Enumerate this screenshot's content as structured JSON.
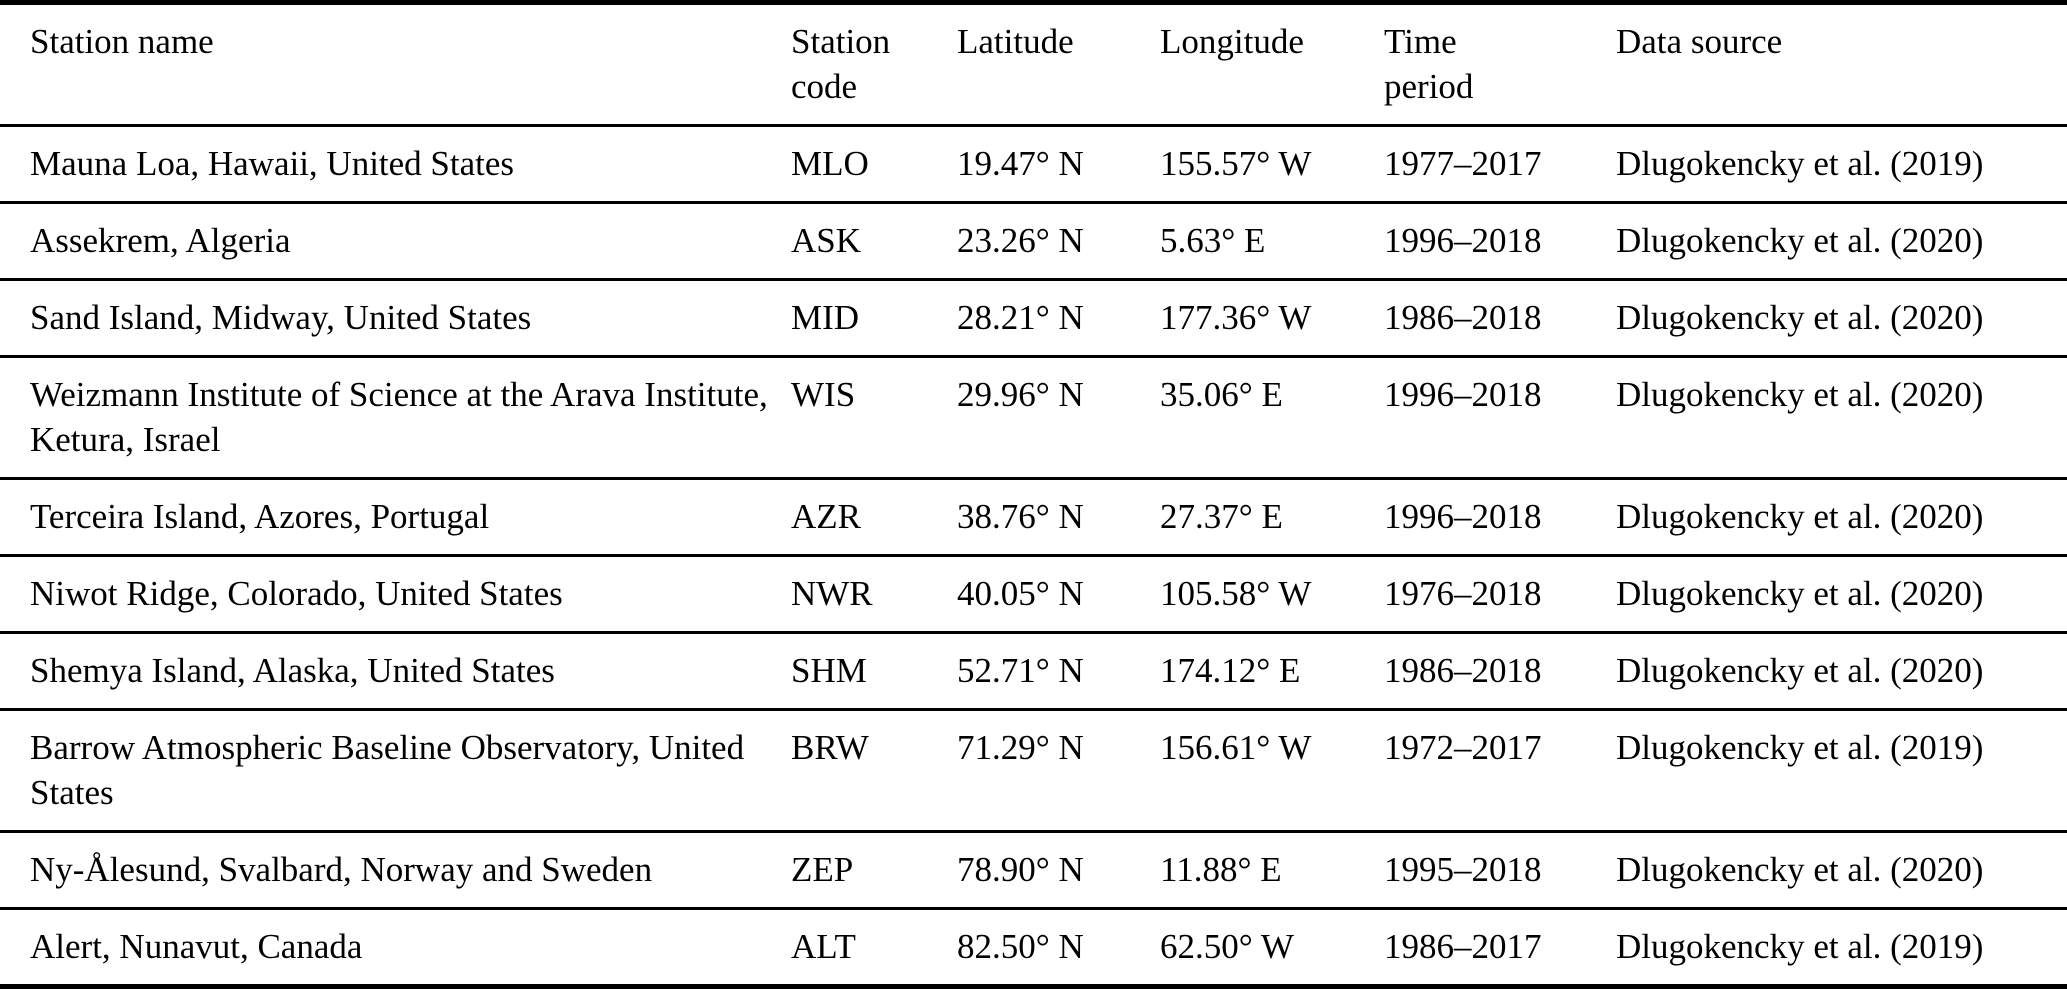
{
  "colors": {
    "background": "#ffffff",
    "text": "#000000",
    "rule": "#000000"
  },
  "table": {
    "columns": [
      {
        "id": "name",
        "label": "Station name"
      },
      {
        "id": "code",
        "label": "Station",
        "label2": "code"
      },
      {
        "id": "lat",
        "label": "Latitude"
      },
      {
        "id": "lon",
        "label": "Longitude"
      },
      {
        "id": "period",
        "label": "Time",
        "label2": "period"
      },
      {
        "id": "source",
        "label": "Data source"
      }
    ],
    "rows": [
      {
        "name": "Mauna Loa, Hawaii, United States",
        "code": "MLO",
        "lat": "19.47° N",
        "lon": "155.57° W",
        "period": "1977–2017",
        "source": "Dlugokencky et al. (2019)"
      },
      {
        "name": "Assekrem, Algeria",
        "code": "ASK",
        "lat": "23.26° N",
        "lon": "5.63° E",
        "period": "1996–2018",
        "source": "Dlugokencky et al. (2020)"
      },
      {
        "name": "Sand Island, Midway, United States",
        "code": "MID",
        "lat": "28.21° N",
        "lon": "177.36° W",
        "period": "1986–2018",
        "source": "Dlugokencky et al. (2020)"
      },
      {
        "name": "Weizmann Institute of Science at the Arava Institute, Ketura, Israel",
        "code": "WIS",
        "lat": "29.96° N",
        "lon": "35.06° E",
        "period": "1996–2018",
        "source": "Dlugokencky et al. (2020)"
      },
      {
        "name": "Terceira Island, Azores, Portugal",
        "code": "AZR",
        "lat": "38.76° N",
        "lon": "27.37° E",
        "period": "1996–2018",
        "source": "Dlugokencky et al. (2020)"
      },
      {
        "name": "Niwot Ridge, Colorado, United States",
        "code": "NWR",
        "lat": "40.05° N",
        "lon": "105.58° W",
        "period": "1976–2018",
        "source": "Dlugokencky et al. (2020)"
      },
      {
        "name": "Shemya Island, Alaska, United States",
        "code": "SHM",
        "lat": "52.71° N",
        "lon": "174.12° E",
        "period": "1986–2018",
        "source": "Dlugokencky et al. (2020)"
      },
      {
        "name": "Barrow Atmospheric Baseline Observatory, United States",
        "code": "BRW",
        "lat": "71.29° N",
        "lon": "156.61° W",
        "period": "1972–2017",
        "source": "Dlugokencky et al. (2019)"
      },
      {
        "name": "Ny-Ålesund, Svalbard, Norway and Sweden",
        "code": "ZEP",
        "lat": "78.90° N",
        "lon": "11.88° E",
        "period": "1995–2018",
        "source": "Dlugokencky et al. (2020)"
      },
      {
        "name": "Alert, Nunavut, Canada",
        "code": "ALT",
        "lat": "82.50° N",
        "lon": "62.50° W",
        "period": "1986–2017",
        "source": "Dlugokencky et al. (2019)"
      }
    ]
  }
}
